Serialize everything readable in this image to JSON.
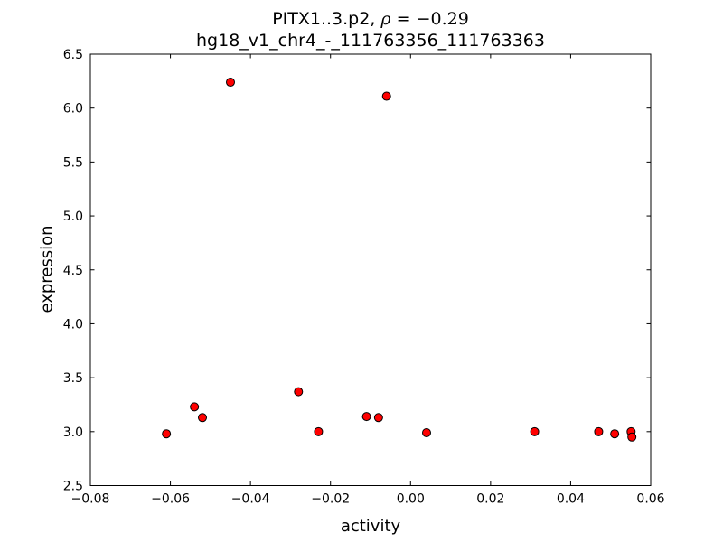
{
  "figure": {
    "background": "#ffffff",
    "frame_color": "#000000"
  },
  "chart_data": {
    "type": "scatter",
    "title_prefix": "PITX1..3.p2, ",
    "title_rho": "ρ",
    "title_rho_value": " = −0.29",
    "subtitle": "hg18_v1_chr4_-_111763356_111763363",
    "xlabel": "activity",
    "ylabel": "expression",
    "xlim": [
      -0.08,
      0.06
    ],
    "ylim": [
      2.5,
      6.5
    ],
    "x_ticks": [
      -0.08,
      -0.06,
      -0.04,
      -0.02,
      0.0,
      0.02,
      0.04,
      0.06
    ],
    "x_tick_labels": [
      "−0.08",
      "−0.06",
      "−0.04",
      "−0.02",
      "0.00",
      "0.02",
      "0.04",
      "0.06"
    ],
    "y_ticks": [
      2.5,
      3.0,
      3.5,
      4.0,
      4.5,
      5.0,
      5.5,
      6.0,
      6.5
    ],
    "y_tick_labels": [
      "2.5",
      "3.0",
      "3.5",
      "4.0",
      "4.5",
      "5.0",
      "5.5",
      "6.0",
      "6.5"
    ],
    "grid": false,
    "legend": null,
    "marker": {
      "shape": "circle",
      "fill": "#ff0000",
      "edge": "#000000",
      "radius_px": 4.5
    },
    "points": [
      [
        -0.061,
        2.98
      ],
      [
        -0.054,
        3.23
      ],
      [
        -0.052,
        3.13
      ],
      [
        -0.045,
        6.24
      ],
      [
        -0.028,
        3.37
      ],
      [
        -0.023,
        3.0
      ],
      [
        -0.011,
        3.14
      ],
      [
        -0.008,
        3.13
      ],
      [
        -0.006,
        6.11
      ],
      [
        0.004,
        2.99
      ],
      [
        0.031,
        3.0
      ],
      [
        0.047,
        3.0
      ],
      [
        0.051,
        2.98
      ],
      [
        0.0551,
        3.0
      ],
      [
        0.0553,
        2.95
      ]
    ]
  }
}
